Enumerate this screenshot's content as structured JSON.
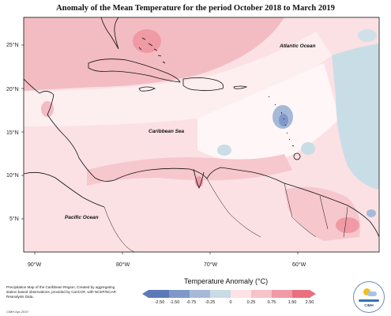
{
  "title": "Anomaly of the Mean Temperature for the period October 2018 to March 2019",
  "map": {
    "lat_labels": [
      "25°N",
      "20°N",
      "15°N",
      "10°N",
      "5°N"
    ],
    "lon_labels": [
      "90°W",
      "80°W",
      "70°W",
      "60°W"
    ],
    "ocean_labels": {
      "atlantic": "Atlantic Ocean",
      "caribbean": "Caribbean Sea",
      "pacific": "Pacific Ocean"
    }
  },
  "legend": {
    "title": "Temperature Anomaly (°C)",
    "ticks": [
      "-2.50",
      "-1.50",
      "-0.75",
      "-0.25",
      "0",
      "0.25",
      "0.75",
      "1.50",
      "2.50"
    ],
    "colors": [
      "#5b79b8",
      "#7f98c9",
      "#a5b9d9",
      "#c9dbe6",
      "#ffffff",
      "#fde3e6",
      "#f7c3c8",
      "#ef9aa4",
      "#e8707f"
    ]
  },
  "footer": {
    "description": "Precipitation Map of the Caribbean Region, Created by aggregating station based observations, provided by CariCOF, with NCEP/NCAR Reanalysis Data.",
    "credit": "CIMH Apr-2019"
  },
  "logo": {
    "text": "CIMH"
  }
}
